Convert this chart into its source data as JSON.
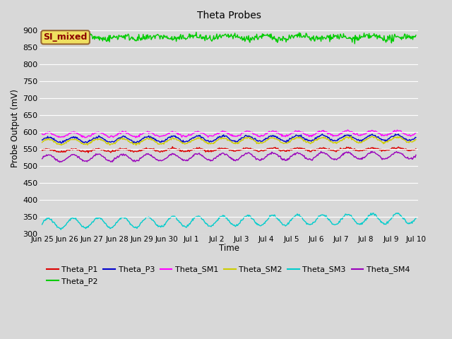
{
  "title": "Theta Probes",
  "xlabel": "Time",
  "ylabel": "Probe Output (mV)",
  "ylim": [
    300,
    920
  ],
  "yticks": [
    300,
    350,
    400,
    450,
    500,
    550,
    600,
    650,
    700,
    750,
    800,
    850,
    900
  ],
  "n_days": 15,
  "n_points": 600,
  "series": [
    {
      "name": "Theta_P1",
      "color": "#dd0000",
      "base": 545,
      "amp": 4,
      "freq": 1.0,
      "trend": 0.3,
      "noise": 1.5
    },
    {
      "name": "Theta_P2",
      "color": "#00cc00",
      "base": 878,
      "amp": 4,
      "freq": 0.7,
      "trend": 0.0,
      "noise": 5
    },
    {
      "name": "Theta_P3",
      "color": "#0000cc",
      "base": 576,
      "amp": 8,
      "freq": 1.0,
      "trend": 0.5,
      "noise": 1.5
    },
    {
      "name": "Theta_SM1",
      "color": "#ff00ff",
      "base": 591,
      "amp": 7,
      "freq": 1.0,
      "trend": 0.4,
      "noise": 1.5
    },
    {
      "name": "Theta_SM2",
      "color": "#cccc00",
      "base": 570,
      "amp": 8,
      "freq": 1.0,
      "trend": 0.5,
      "noise": 1.5
    },
    {
      "name": "Theta_SM3",
      "color": "#00cccc",
      "base": 330,
      "amp": 15,
      "freq": 1.0,
      "trend": 1.0,
      "noise": 1.5
    },
    {
      "name": "Theta_SM4",
      "color": "#9900bb",
      "base": 522,
      "amp": 10,
      "freq": 1.0,
      "trend": 0.6,
      "noise": 1.5
    }
  ],
  "x_tick_labels": [
    "Jun 25",
    "Jun 26",
    "Jun 27",
    "Jun 28",
    "Jun 29",
    "Jun 30",
    "Jul 1",
    "Jul 2",
    "Jul 3",
    "Jul 4",
    "Jul 5",
    "Jul 6",
    "Jul 7",
    "Jul 8",
    "Jul 9",
    "Jul 10"
  ],
  "annotation_text": "SI_mixed",
  "bg_color": "#d8d8d8",
  "plot_bg_color": "#d8d8d8",
  "grid_color": "#ffffff",
  "linewidth": 1.0
}
